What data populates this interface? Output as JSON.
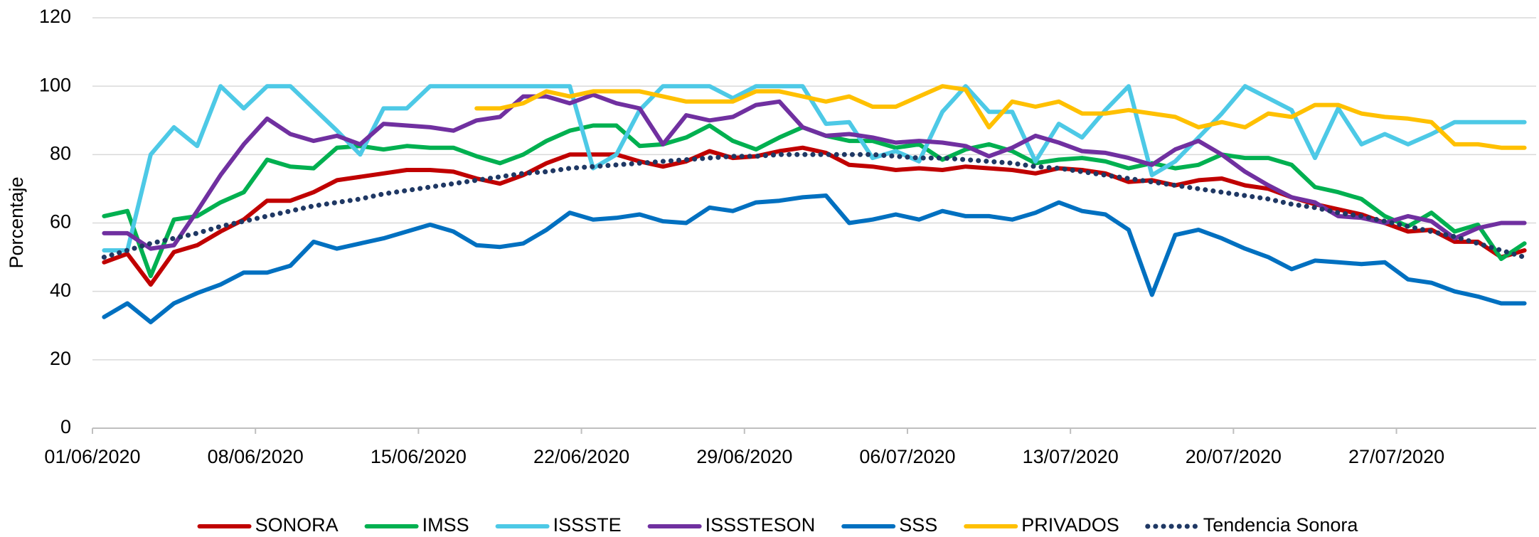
{
  "chart_data": {
    "type": "line",
    "y_label": "Porcentaje",
    "categories": [
      "01/06/2020",
      null,
      null,
      null,
      null,
      null,
      null,
      "08/06/2020",
      null,
      null,
      null,
      null,
      null,
      null,
      "15/06/2020",
      null,
      null,
      null,
      null,
      null,
      null,
      "22/06/2020",
      null,
      null,
      null,
      null,
      null,
      null,
      "29/06/2020",
      null,
      null,
      null,
      null,
      null,
      null,
      "06/07/2020",
      null,
      null,
      null,
      null,
      null,
      null,
      "13/07/2020",
      null,
      null,
      null,
      null,
      null,
      null,
      "20/07/2020",
      null,
      null,
      null,
      null,
      null,
      null,
      "27/07/2020",
      null,
      null,
      null,
      null,
      null
    ],
    "ylim": [
      0,
      120
    ],
    "yticks": [
      0,
      20,
      40,
      60,
      80,
      100,
      120
    ],
    "grid": true,
    "series": [
      {
        "name": "SONORA",
        "color": "#c00000",
        "style": "solid",
        "values": [
          48.5,
          51,
          42,
          51.5,
          53.5,
          57.5,
          61,
          66.5,
          66.5,
          69,
          72.5,
          73.5,
          74.5,
          75.5,
          75.5,
          75,
          73,
          71.5,
          74,
          77.5,
          80,
          80,
          80,
          78,
          76.5,
          78,
          81,
          79,
          79.5,
          81,
          82,
          80.5,
          77,
          76.5,
          75.5,
          76,
          75.5,
          76.5,
          76,
          75.5,
          74.5,
          76,
          75.5,
          74.5,
          72,
          72.5,
          71,
          72.5,
          73,
          71,
          70,
          67.5,
          65.5,
          64,
          62.5,
          60,
          57.5,
          58,
          54.5,
          54.5,
          50,
          52
        ]
      },
      {
        "name": "IMSS",
        "color": "#00b050",
        "style": "solid",
        "values": [
          62,
          63.5,
          44.5,
          61,
          62,
          66,
          69,
          78.5,
          76.5,
          76,
          82,
          82.5,
          81.5,
          82.5,
          82,
          82,
          79.5,
          77.5,
          80,
          84,
          87,
          88.5,
          88.5,
          82.5,
          83,
          85,
          88.5,
          84,
          81.5,
          85,
          88,
          85.5,
          84,
          84,
          82,
          83,
          78.5,
          81.5,
          83,
          81,
          77.5,
          78.5,
          79,
          78,
          76,
          77.5,
          76,
          77,
          80,
          79,
          79,
          77,
          70.5,
          69,
          67,
          62,
          59,
          63,
          57.5,
          59.5,
          49.5,
          54
        ]
      },
      {
        "name": "ISSSTE",
        "color": "#4dc9e6",
        "style": "solid",
        "values": [
          52,
          52,
          80,
          88,
          82.5,
          100,
          93.5,
          100,
          100,
          93.5,
          87,
          80,
          93.5,
          93.5,
          100,
          100,
          100,
          100,
          100,
          100,
          100,
          76,
          80,
          93,
          100,
          100,
          100,
          96.5,
          100,
          100,
          100,
          89,
          89.5,
          79,
          81,
          78,
          92.5,
          100,
          92.5,
          92.5,
          78,
          89,
          85,
          93,
          100,
          74,
          78,
          85,
          92,
          100,
          96.5,
          93,
          79,
          93.5,
          83,
          86,
          83,
          86,
          89.5,
          89.5,
          89.5,
          89.5
        ]
      },
      {
        "name": "ISSSTESON",
        "color": "#7030a0",
        "style": "solid",
        "values": [
          57,
          57,
          52.5,
          53.5,
          63.5,
          74,
          83,
          90.5,
          86,
          84,
          85.5,
          83,
          89,
          88.5,
          88,
          87,
          90,
          91,
          97,
          97,
          95,
          97.5,
          95,
          93.5,
          83,
          91.5,
          90,
          91,
          94.5,
          95.5,
          88,
          85.5,
          86,
          85,
          83.5,
          84,
          83.5,
          82.5,
          79.5,
          82,
          85.5,
          83.5,
          81,
          80.5,
          79,
          77,
          81.5,
          84,
          80,
          75,
          71,
          67.5,
          66,
          62,
          61.5,
          60,
          62,
          60.5,
          55.5,
          58.5,
          60,
          60
        ]
      },
      {
        "name": "SSS",
        "color": "#0070c0",
        "style": "solid",
        "values": [
          32.5,
          36.5,
          31,
          36.5,
          39.5,
          42,
          45.5,
          45.5,
          47.5,
          54.5,
          52.5,
          54,
          55.5,
          57.5,
          59.5,
          57.5,
          53.5,
          53,
          54,
          58,
          63,
          61,
          61.5,
          62.5,
          60.5,
          60,
          64.5,
          63.5,
          66,
          66.5,
          67.5,
          68,
          60,
          61,
          62.5,
          61,
          63.5,
          62,
          62,
          61,
          63,
          66,
          63.5,
          62.5,
          58,
          39,
          56.5,
          58,
          55.5,
          52.5,
          50,
          46.5,
          49,
          48.5,
          48,
          48.5,
          43.5,
          42.5,
          40,
          38.5,
          36.5,
          36.5
        ]
      },
      {
        "name": "PRIVADOS",
        "color": "#ffc000",
        "style": "solid",
        "values": [
          null,
          null,
          null,
          null,
          null,
          null,
          null,
          null,
          null,
          null,
          null,
          null,
          null,
          null,
          null,
          null,
          93.5,
          93.5,
          95,
          98.5,
          97,
          98.5,
          98.5,
          98.5,
          97,
          95.5,
          95.5,
          95.5,
          98.5,
          98.5,
          97,
          95.5,
          97,
          94,
          94,
          97,
          100,
          99,
          88,
          95.5,
          94,
          95.5,
          92,
          92,
          93,
          92,
          91,
          88,
          89.5,
          88,
          92,
          91,
          94.5,
          94.5,
          92,
          91,
          90.5,
          89.5,
          83,
          83,
          82,
          82
        ]
      },
      {
        "name": "Tendencia Sonora",
        "color": "#1f3864",
        "style": "dotted",
        "values": [
          50,
          52,
          54,
          55.5,
          57,
          59,
          60.5,
          62,
          63.5,
          65,
          66,
          67,
          68.5,
          69.5,
          70.5,
          71.5,
          72.5,
          73.5,
          74.5,
          75,
          76,
          76.5,
          77,
          77.5,
          78,
          78.5,
          79,
          79.5,
          79.5,
          80,
          80,
          80,
          80,
          80,
          79.5,
          79,
          79,
          78.5,
          78,
          77.5,
          76.5,
          76,
          75,
          74,
          73,
          72,
          71,
          70,
          69,
          68,
          67,
          65.5,
          64.5,
          63,
          62,
          60.5,
          59,
          57.5,
          56,
          54,
          52,
          50
        ]
      }
    ]
  }
}
